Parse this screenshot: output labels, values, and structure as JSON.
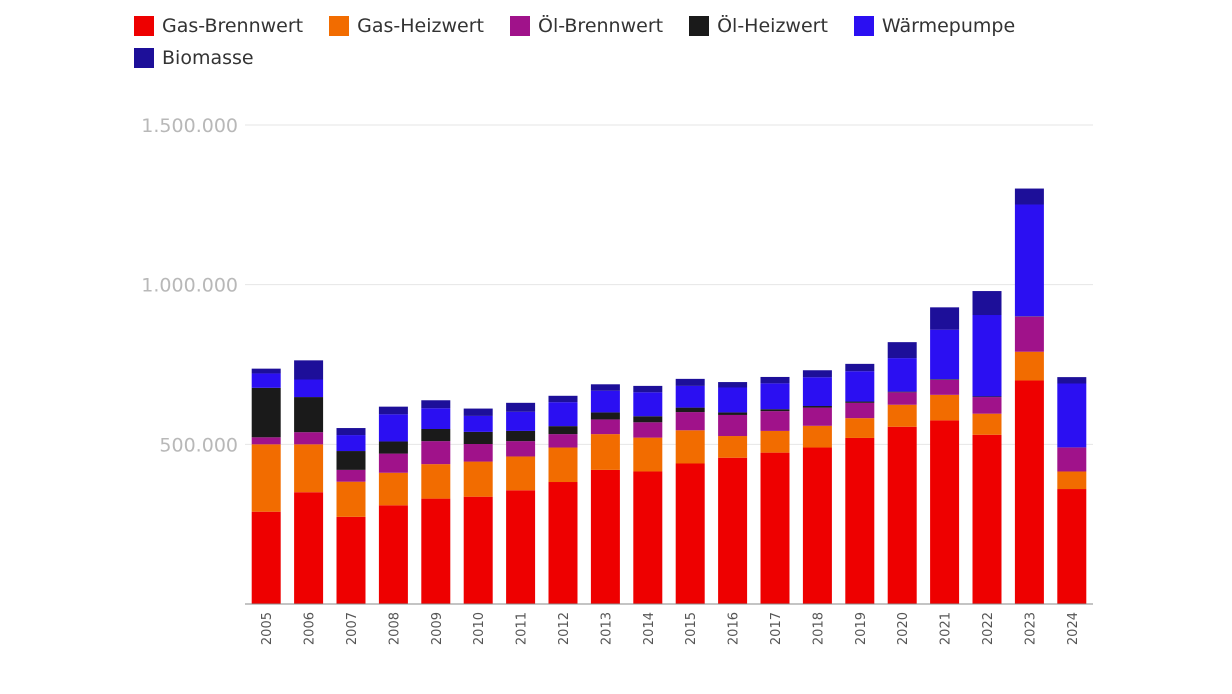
{
  "chart_data": {
    "type": "bar",
    "stacked": true,
    "title": "",
    "xlabel": "",
    "ylabel": "",
    "ylim": [
      0,
      1500000
    ],
    "yticks": [
      500000,
      1000000,
      1500000
    ],
    "ytick_labels": [
      "500.000",
      "1.000.000",
      "1.500.000"
    ],
    "grid": true,
    "legend": "top",
    "categories": [
      "2005",
      "2006",
      "2007",
      "2008",
      "2009",
      "2010",
      "2011",
      "2012",
      "2013",
      "2014",
      "2015",
      "2016",
      "2017",
      "2018",
      "2019",
      "2020",
      "2021",
      "2022",
      "2023",
      "2024"
    ],
    "series": [
      {
        "name": "Gas-Brennwert",
        "color": "#ee0000",
        "values": [
          289000,
          350000,
          273000,
          309000,
          330000,
          336000,
          356000,
          382000,
          420000,
          415000,
          440000,
          458000,
          474000,
          490000,
          520000,
          555000,
          575000,
          530000,
          700000,
          360000
        ]
      },
      {
        "name": "Gas-Heizwert",
        "color": "#f26c00",
        "values": [
          211000,
          150000,
          110000,
          102000,
          108000,
          110000,
          106000,
          108000,
          112000,
          106000,
          104000,
          68000,
          68000,
          68000,
          62000,
          69000,
          80000,
          66000,
          90000,
          55000
        ]
      },
      {
        "name": "Öl-Brennwert",
        "color": "#a0128a",
        "values": [
          22000,
          38000,
          37000,
          60000,
          72000,
          55000,
          48000,
          42000,
          46000,
          48000,
          57000,
          66000,
          62000,
          57000,
          48000,
          39000,
          47000,
          52000,
          110000,
          75000
        ]
      },
      {
        "name": "Öl-Heizwert",
        "color": "#1a1a1a",
        "values": [
          155000,
          110000,
          59000,
          38000,
          38000,
          38000,
          32000,
          25000,
          22000,
          19000,
          14000,
          8000,
          6000,
          5000,
          4000,
          2000,
          2000,
          2000,
          1000,
          500
        ]
      },
      {
        "name": "Wärmepumpe",
        "color": "#2b0ff2",
        "values": [
          45000,
          55000,
          50000,
          85000,
          65000,
          50000,
          60000,
          75000,
          68000,
          75000,
          68000,
          78000,
          81000,
          90000,
          95000,
          105000,
          155000,
          255000,
          350000,
          200000
        ]
      },
      {
        "name": "Biomasse",
        "color": "#1d0f99",
        "values": [
          15000,
          60000,
          22000,
          24000,
          25000,
          23000,
          28000,
          20000,
          20000,
          20000,
          22000,
          17000,
          20000,
          22000,
          23000,
          50000,
          70000,
          75000,
          50000,
          20000
        ]
      }
    ]
  }
}
